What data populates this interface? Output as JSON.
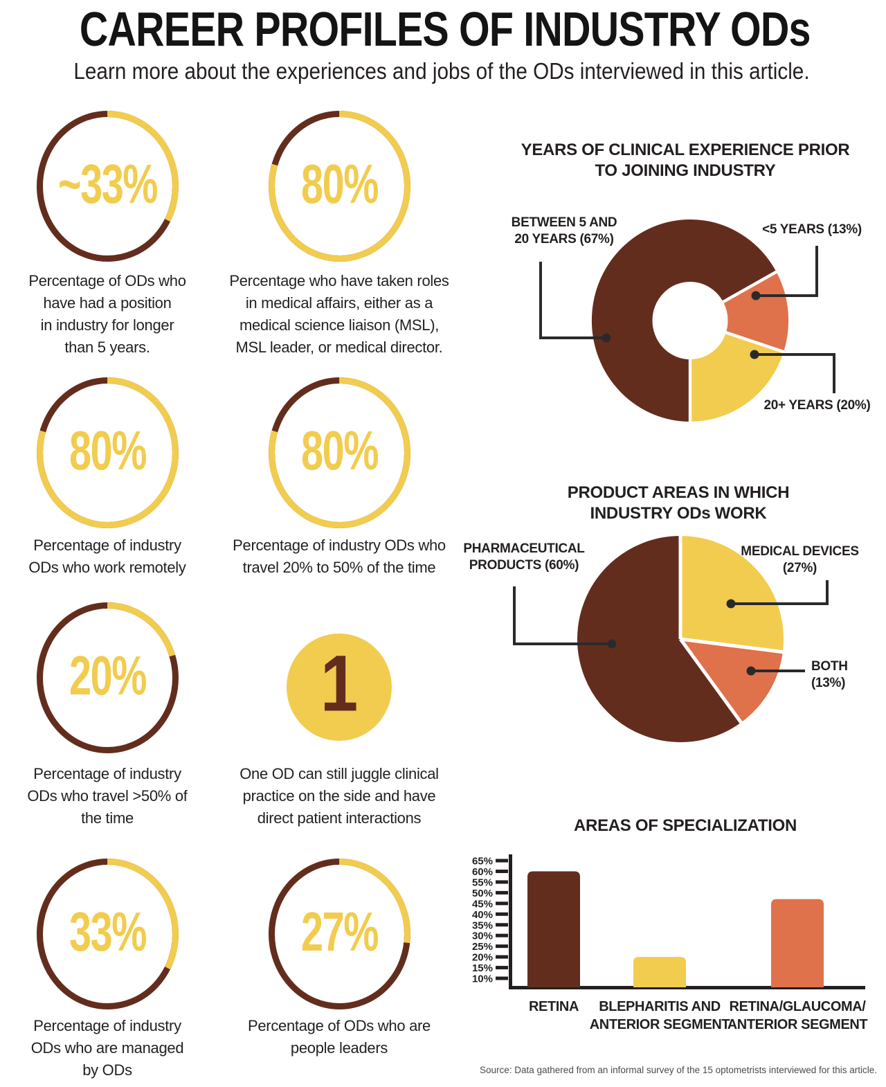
{
  "palette": {
    "yellow": "#F2CC4E",
    "orange": "#DF714B",
    "brown": "#632D1E",
    "ink": "#231F20",
    "line": "#2A2A2C"
  },
  "header": {
    "title": "CAREER PROFILES OF INDUSTRY ODs",
    "subtitle": "Learn more about the experiences and jobs of the ODs interviewed in this article."
  },
  "stats": [
    {
      "display": "~33%",
      "value": 33,
      "description": "Percentage of ODs who\nhave had a position\nin industry for longer\nthan 5 years."
    },
    {
      "display": "80%",
      "value": 80,
      "description": "Percentage who have taken roles\nin medical affairs, either as a\nmedical science liaison (MSL),\nMSL leader, or medical director."
    },
    {
      "display": "80%",
      "value": 80,
      "description": "Percentage of industry\nODs who work remotely"
    },
    {
      "display": "80%",
      "value": 80,
      "description": "Percentage of industry ODs who\ntravel 20% to 50% of the time"
    },
    {
      "display": "20%",
      "value": 20,
      "description": "Percentage of industry\nODs who travel >50% of\nthe time"
    },
    {
      "display": "1",
      "value": 100,
      "filled": true,
      "description": "One OD can still juggle clinical\npractice on the side and have\ndirect patient interactions"
    },
    {
      "display": "33%",
      "value": 33,
      "description": "Percentage of industry\nODs who are managed\nby ODs"
    },
    {
      "display": "27%",
      "value": 27,
      "description": "Percentage of ODs who are\npeople leaders"
    }
  ],
  "chart_data": [
    {
      "type": "donut",
      "title": "YEARS OF CLINICAL EXPERIENCE PRIOR\nTO JOINING INDUSTRY",
      "start_at": 50,
      "legend_position": "callout-labels",
      "segments": [
        {
          "name": "Between 5 and 20 years",
          "label": "BETWEEN 5 AND\n20 YEARS (67%)",
          "value": 67,
          "color_key": "brown"
        },
        {
          "name": "<5 years",
          "label": "<5 YEARS (13%)",
          "value": 13,
          "color_key": "orange"
        },
        {
          "name": "20+ years",
          "label": "20+ YEARS (20%)",
          "value": 20,
          "color_key": "yellow"
        }
      ]
    },
    {
      "type": "pie",
      "title": "PRODUCT AREAS IN WHICH\nINDUSTRY ODs WORK",
      "start_at": 0,
      "legend_position": "callout-labels",
      "segments": [
        {
          "name": "Medical devices",
          "label": "MEDICAL DEVICES\n(27%)",
          "value": 27,
          "color_key": "yellow"
        },
        {
          "name": "Both",
          "label": "BOTH\n(13%)",
          "value": 13,
          "color_key": "orange"
        },
        {
          "name": "Pharmaceutical products",
          "label": "PHARMACEUTICAL\nPRODUCTS (60%)",
          "value": 60,
          "color_key": "brown"
        }
      ]
    },
    {
      "type": "bar",
      "title": "AREAS OF SPECIALIZATION",
      "categories": [
        "RETINA",
        "BLEPHARITIS AND\nANTERIOR SEGMENT",
        "RETINA/GLAUCOMA/\nANTERIOR SEGMENT"
      ],
      "values": [
        60,
        20,
        47
      ],
      "color_keys": [
        "brown",
        "yellow",
        "orange"
      ],
      "y_ticks": [
        10,
        15,
        20,
        25,
        30,
        35,
        40,
        45,
        50,
        55,
        60,
        65
      ],
      "ylim": [
        5.5,
        67
      ],
      "tick_format": "percent",
      "grid": false
    }
  ],
  "source": "Source: Data gathered from an informal survey of the 15 optometrists interviewed for this article."
}
